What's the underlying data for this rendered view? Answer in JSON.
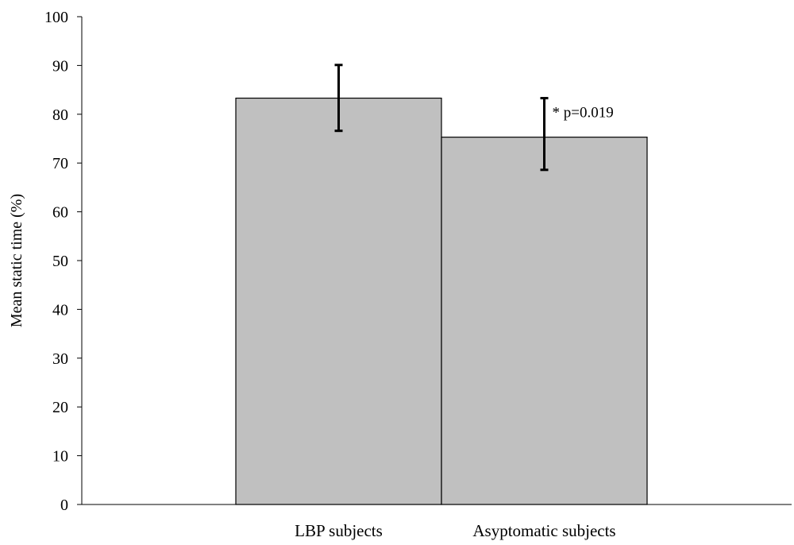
{
  "chart_data": {
    "type": "bar",
    "categories": [
      "LBP subjects",
      "Asyptomatic subjects"
    ],
    "values": [
      83.3,
      75.3
    ],
    "error_bars": [
      {
        "low": 76.6,
        "high": 90.1
      },
      {
        "low": 68.6,
        "high": 83.3
      }
    ],
    "ylabel": "Mean static time (%)",
    "xlabel": "",
    "ylim": [
      0,
      100
    ],
    "yticks": [
      "0",
      "10",
      "20",
      "30",
      "40",
      "50",
      "60",
      "70",
      "80",
      "90",
      "100"
    ],
    "annotation": "* p=0.019",
    "grid": false,
    "legend": "none",
    "bar_color": "#c0c0c0",
    "bar_edge_color": "#000000"
  }
}
